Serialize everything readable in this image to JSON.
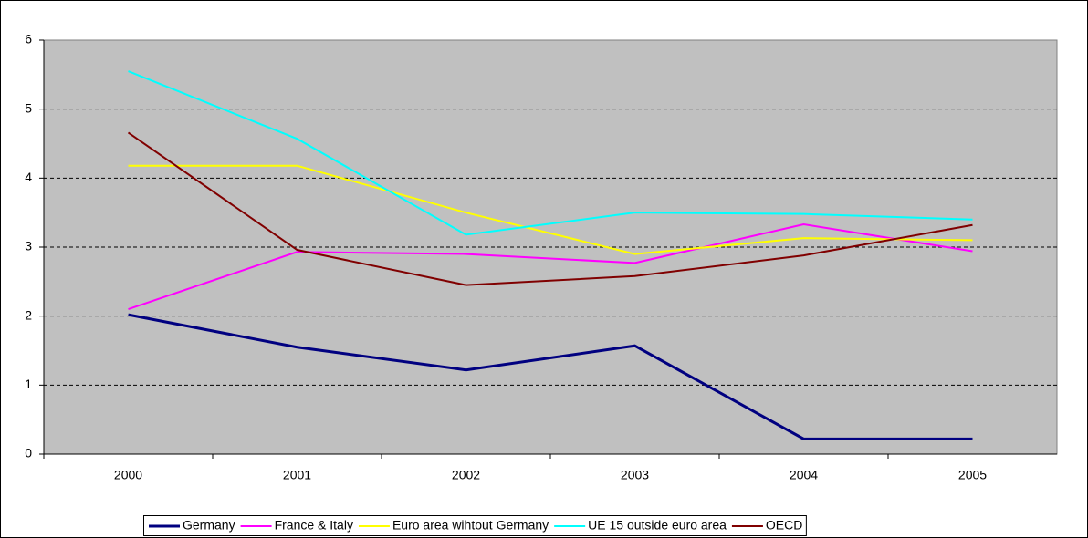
{
  "chart_data": {
    "type": "line",
    "categories": [
      "2000",
      "2001",
      "2002",
      "2003",
      "2004",
      "2005"
    ],
    "series": [
      {
        "name": "Germany",
        "color": "#000080",
        "values": [
          2.02,
          1.55,
          1.22,
          1.57,
          0.22,
          0.22
        ]
      },
      {
        "name": "France & Italy",
        "color": "#ff00ff",
        "values": [
          2.1,
          2.93,
          2.9,
          2.77,
          3.33,
          2.94
        ]
      },
      {
        "name": "Euro area wihtout Germany",
        "color": "#ffff00",
        "values": [
          4.18,
          4.18,
          3.5,
          2.9,
          3.13,
          3.1
        ]
      },
      {
        "name": "UE 15 outside euro area",
        "color": "#00ffff",
        "values": [
          5.55,
          4.57,
          3.18,
          3.5,
          3.48,
          3.4
        ]
      },
      {
        "name": "OECD",
        "color": "#800000",
        "values": [
          4.66,
          2.96,
          2.45,
          2.58,
          2.88,
          3.32
        ]
      }
    ],
    "ylim": [
      0,
      6
    ],
    "yticks": [
      0,
      1,
      2,
      3,
      4,
      5,
      6
    ],
    "grid": true,
    "legend": "bottom"
  }
}
